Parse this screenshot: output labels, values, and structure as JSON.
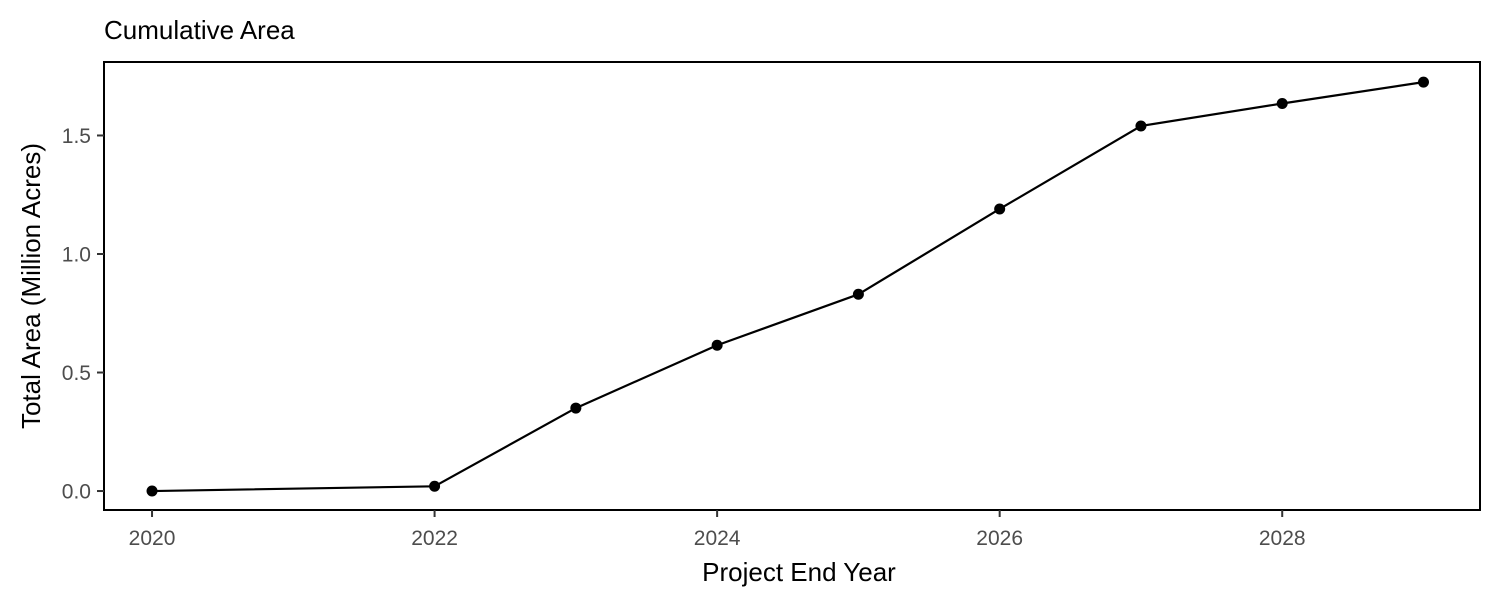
{
  "chart_data": {
    "type": "line",
    "title": "Cumulative Area",
    "xlabel": "Project End Year",
    "ylabel": "Total Area (Million Acres)",
    "x": [
      2020,
      2022,
      2023,
      2024,
      2025,
      2026,
      2027,
      2028,
      2029
    ],
    "series": [
      {
        "values": [
          0.0,
          0.02,
          0.35,
          0.615,
          0.83,
          1.19,
          1.54,
          1.635,
          1.725
        ],
        "color": "#000000"
      }
    ],
    "xlim": [
      2019.66,
      2029.4
    ],
    "ylim": [
      -0.08,
      1.81
    ],
    "x_ticks": [
      2020,
      2022,
      2024,
      2026,
      2028
    ],
    "x_tick_labels": [
      "2020",
      "2022",
      "2024",
      "2026",
      "2028"
    ],
    "y_ticks": [
      0.0,
      0.5,
      1.0,
      1.5
    ],
    "y_tick_labels": [
      "0.0",
      "0.5",
      "1.0",
      "1.5"
    ],
    "grid": false,
    "legend": "none"
  }
}
